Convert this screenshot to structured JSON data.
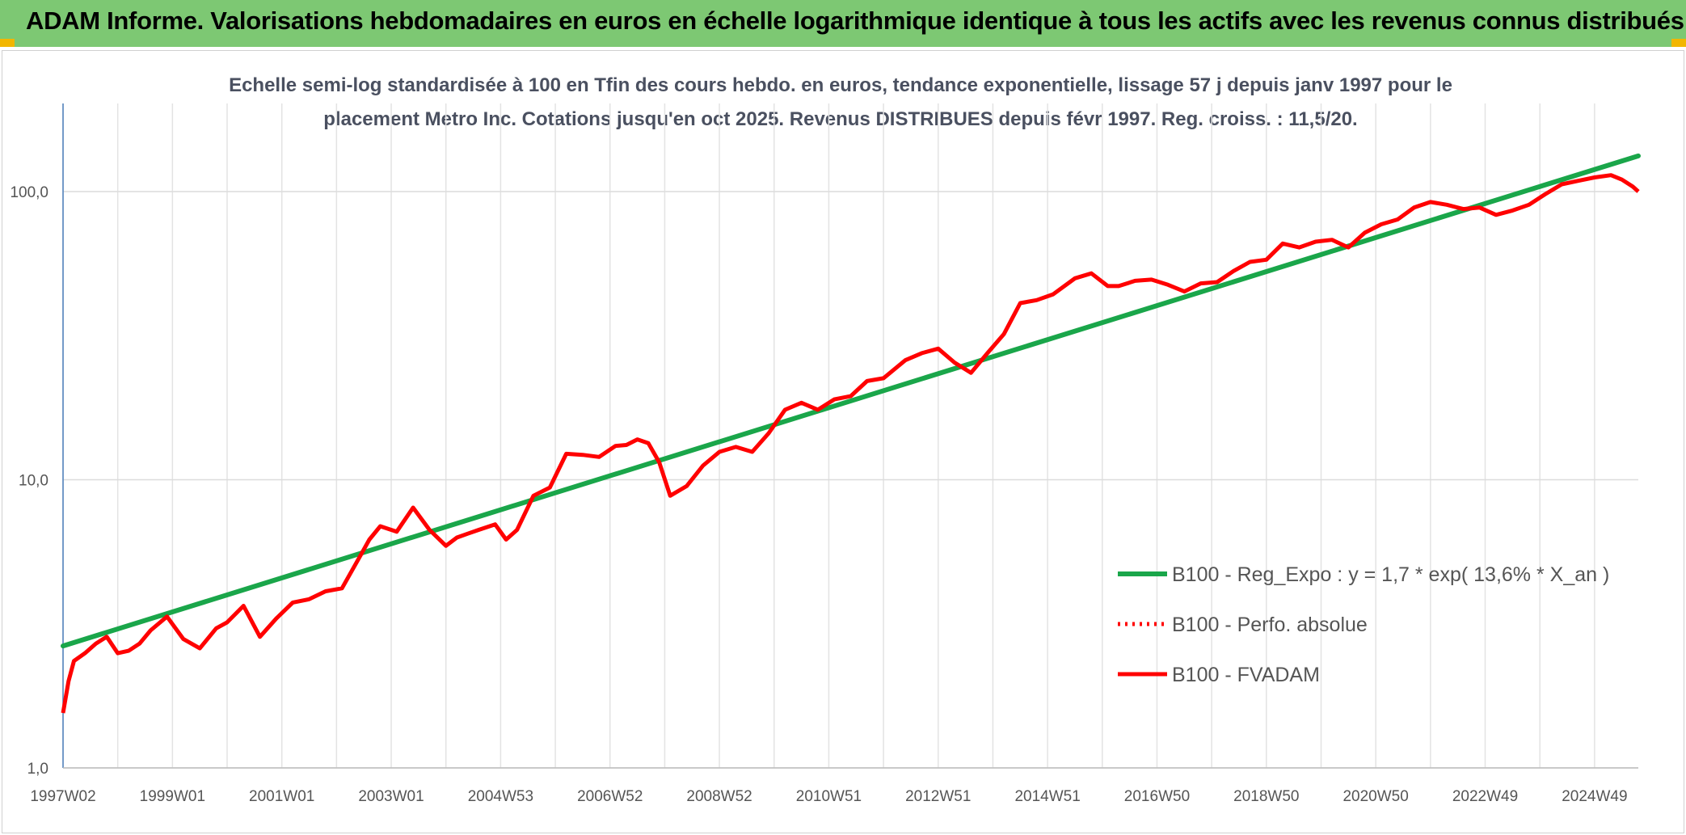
{
  "header": {
    "title": "ADAM Informe. Valorisations hebdomadaires en euros en échelle logarithmique identique à tous les actifs avec les revenus connus distribués"
  },
  "chart_data": {
    "type": "line",
    "title_line1": "Echelle semi-log standardisée à 100 en Tfin des cours hebdo. en euros, tendance exponentielle, lissage 57 j depuis janv 1997 pour le",
    "title_line2": "placement Metro Inc. Cotations jusqu'en oct 2025. Revenus DISTRIBUES depuis févr 1997. Reg. croiss. : 11,5/20.",
    "y_scale": "log",
    "ylim": [
      1,
      180
    ],
    "y_ticks": [
      {
        "value": 1,
        "label": "1,0"
      },
      {
        "value": 10,
        "label": "10,0"
      },
      {
        "value": 100,
        "label": "100,0"
      }
    ],
    "x_range": [
      1997.0,
      2025.8
    ],
    "x_ticks": [
      {
        "value": 1997.0,
        "label": "1997W02"
      },
      {
        "value": 1999.0,
        "label": "1999W01"
      },
      {
        "value": 2001.0,
        "label": "2001W01"
      },
      {
        "value": 2003.0,
        "label": "2003W01"
      },
      {
        "value": 2005.0,
        "label": "2004W53"
      },
      {
        "value": 2007.0,
        "label": "2006W52"
      },
      {
        "value": 2009.0,
        "label": "2008W52"
      },
      {
        "value": 2011.0,
        "label": "2010W51"
      },
      {
        "value": 2013.0,
        "label": "2012W51"
      },
      {
        "value": 2015.0,
        "label": "2014W51"
      },
      {
        "value": 2017.0,
        "label": "2016W50"
      },
      {
        "value": 2019.0,
        "label": "2018W50"
      },
      {
        "value": 2021.0,
        "label": "2020W50"
      },
      {
        "value": 2023.0,
        "label": "2022W49"
      },
      {
        "value": 2025.0,
        "label": "2024W49"
      }
    ],
    "grid": {
      "vertical": true,
      "horizontal": true
    },
    "legend_position": "right",
    "series": [
      {
        "name": "B100 - Reg_Expo : y = 1,7 * exp( 13,6% * X_an )",
        "color": "#1aa64a",
        "style": "solid",
        "x": [
          1997.0,
          2025.8
        ],
        "y": [
          2.65,
          133
        ]
      },
      {
        "name": "B100 - Perfo. absolue",
        "color": "#ff0000",
        "style": "dotted",
        "x": [],
        "y": []
      },
      {
        "name": "B100 - FVADAM",
        "color": "#ff0000",
        "style": "solid",
        "x": [
          1997.0,
          1997.1,
          1997.2,
          1997.4,
          1997.6,
          1997.8,
          1998.0,
          1998.2,
          1998.4,
          1998.6,
          1998.9,
          1999.2,
          1999.5,
          1999.8,
          2000.0,
          2000.3,
          2000.6,
          2000.9,
          2001.2,
          2001.5,
          2001.8,
          2002.1,
          2002.4,
          2002.6,
          2002.8,
          2003.1,
          2003.4,
          2003.7,
          2004.0,
          2004.2,
          2004.4,
          2004.6,
          2004.9,
          2005.1,
          2005.3,
          2005.6,
          2005.9,
          2006.2,
          2006.5,
          2006.8,
          2007.1,
          2007.3,
          2007.5,
          2007.7,
          2007.9,
          2008.1,
          2008.4,
          2008.7,
          2009.0,
          2009.3,
          2009.6,
          2009.9,
          2010.2,
          2010.5,
          2010.8,
          2011.1,
          2011.4,
          2011.7,
          2012.0,
          2012.4,
          2012.7,
          2013.0,
          2013.3,
          2013.6,
          2013.9,
          2014.2,
          2014.5,
          2014.8,
          2015.1,
          2015.5,
          2015.8,
          2016.1,
          2016.3,
          2016.6,
          2016.9,
          2017.2,
          2017.5,
          2017.8,
          2018.1,
          2018.4,
          2018.7,
          2019.0,
          2019.3,
          2019.6,
          2019.9,
          2020.2,
          2020.5,
          2020.8,
          2021.1,
          2021.4,
          2021.7,
          2022.0,
          2022.3,
          2022.6,
          2022.9,
          2023.2,
          2023.5,
          2023.8,
          2024.1,
          2024.4,
          2024.7,
          2025.0,
          2025.3,
          2025.5,
          2025.7,
          2025.8
        ],
        "y": [
          1.55,
          2.0,
          2.35,
          2.5,
          2.7,
          2.85,
          2.5,
          2.55,
          2.7,
          3.0,
          3.35,
          2.8,
          2.6,
          3.05,
          3.2,
          3.65,
          2.85,
          3.3,
          3.75,
          3.85,
          4.1,
          4.2,
          5.3,
          6.2,
          6.9,
          6.6,
          8.0,
          6.7,
          5.9,
          6.3,
          6.5,
          6.7,
          7.0,
          6.2,
          6.7,
          8.8,
          9.4,
          12.3,
          12.2,
          12.0,
          13.1,
          13.2,
          13.8,
          13.4,
          11.5,
          8.8,
          9.5,
          11.2,
          12.5,
          13.0,
          12.5,
          14.5,
          17.5,
          18.5,
          17.5,
          19.0,
          19.5,
          22.0,
          22.5,
          26.0,
          27.5,
          28.5,
          25.5,
          23.5,
          27.5,
          32.0,
          41.0,
          42.0,
          44.0,
          50.0,
          52.0,
          47.0,
          47.0,
          49.0,
          49.5,
          47.5,
          45.0,
          48.0,
          48.5,
          53.0,
          57.0,
          58.0,
          66.0,
          64.0,
          67.0,
          68.0,
          64.0,
          72.0,
          77.0,
          80.0,
          88.0,
          92.0,
          90.0,
          87.0,
          88.0,
          83.0,
          86.0,
          90.0,
          98.0,
          106.0,
          109.0,
          112.0,
          114.0,
          110.0,
          104.0,
          100.0
        ]
      }
    ]
  }
}
